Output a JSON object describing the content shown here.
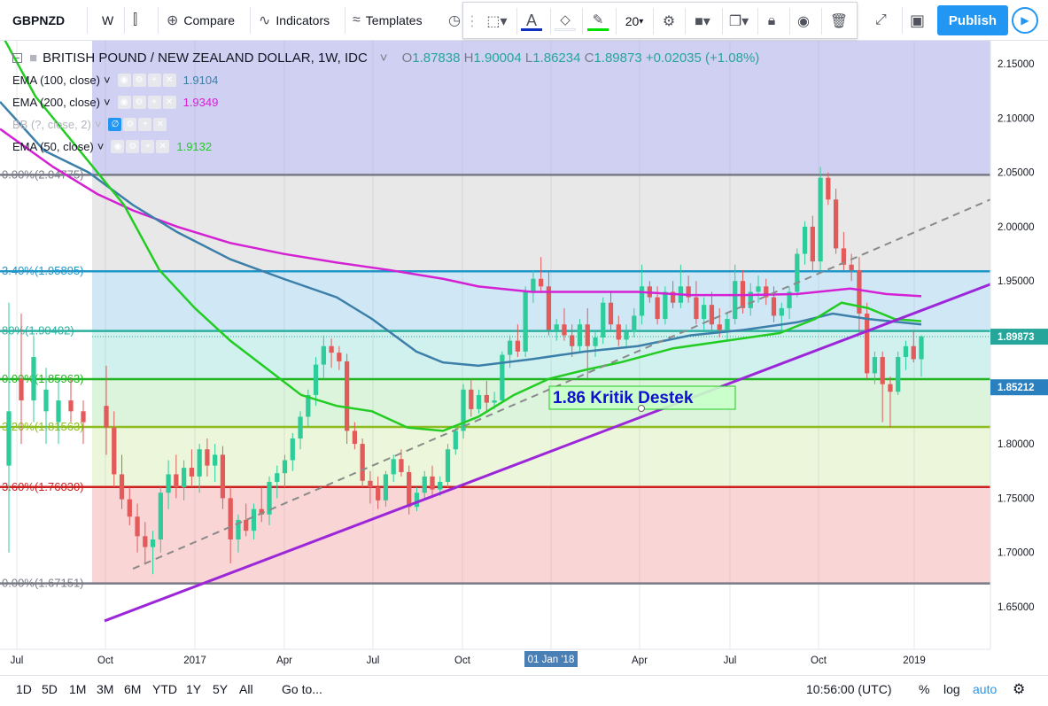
{
  "toolbar": {
    "symbol": "GBPNZD",
    "interval": "W",
    "compare": "Compare",
    "indicators": "Indicators",
    "templates": "Templates",
    "publish": "Publish"
  },
  "drawing_toolbar": {
    "font_size": "20",
    "line_color": "#00e000"
  },
  "legend": {
    "title": "BRITISH POUND / NEW ZEALAND DOLLAR, 1W, IDC",
    "open": "1.87838",
    "high": "1.90004",
    "low": "1.86234",
    "close": "1.89873",
    "change": "+0.02035 (+1.08%)",
    "indicators": [
      {
        "label": "EMA (100, close)",
        "value": "1.9104",
        "color": "#3c7fa8"
      },
      {
        "label": "EMA (200, close)",
        "value": "1.9349",
        "color": "#d321d3"
      },
      {
        "label": "BB (?, close, 2)",
        "value": "",
        "color": "#b2b5be"
      },
      {
        "label": "EMA (50, close)",
        "value": "1.9132",
        "color": "#22cc22"
      }
    ]
  },
  "chart_data": {
    "type": "candlestick",
    "price_axis": [
      "2.15000",
      "2.10000",
      "2.05000",
      "2.00000",
      "1.95000",
      "1.90000",
      "1.85000",
      "1.80000",
      "1.75000",
      "1.70000",
      "1.65000"
    ],
    "time_axis": [
      "Jul",
      "Oct",
      "2017",
      "Apr",
      "Jul",
      "Oct",
      "01 Jan '18",
      "Apr",
      "Jul",
      "Oct",
      "2019"
    ],
    "last_price": "1.89873",
    "crosshair_price": "1.85212",
    "fib_levels": [
      {
        "label": "0.00%(2.04775)",
        "price": 2.04775,
        "color": "#787b86"
      },
      {
        "label": "3.40%(1.95895)",
        "price": 1.95895,
        "color": "#2196c8"
      },
      {
        "label": "80%(1.90402)",
        "price": 1.90402,
        "color": "#2bb0a0"
      },
      {
        "label": "0.00%(1.85963)",
        "price": 1.85963,
        "color": "#22b322"
      },
      {
        "label": "3.20%(1.81563)",
        "price": 1.81563,
        "color": "#8cbc20"
      },
      {
        "label": "3.60%(1.76030)",
        "price": 1.7603,
        "color": "#cc2020"
      },
      {
        "label": "0.00%(1.67151)",
        "price": 1.67151,
        "color": "#787b86"
      }
    ],
    "annotation": "1.86 Kritik Destek",
    "candles": [
      [
        1.835,
        1.872,
        1.79,
        1.815
      ],
      [
        1.815,
        1.83,
        1.76,
        1.772
      ],
      [
        1.772,
        1.79,
        1.74,
        1.749
      ],
      [
        1.749,
        1.76,
        1.725,
        1.733
      ],
      [
        1.733,
        1.745,
        1.7,
        1.715
      ],
      [
        1.715,
        1.728,
        1.69,
        1.705
      ],
      [
        1.705,
        1.72,
        1.68,
        1.712
      ],
      [
        1.712,
        1.76,
        1.7,
        1.755
      ],
      [
        1.755,
        1.785,
        1.74,
        1.772
      ],
      [
        1.772,
        1.79,
        1.75,
        1.76
      ],
      [
        1.76,
        1.785,
        1.748,
        1.778
      ],
      [
        1.778,
        1.795,
        1.76,
        1.77
      ],
      [
        1.77,
        1.8,
        1.755,
        1.795
      ],
      [
        1.795,
        1.805,
        1.77,
        1.78
      ],
      [
        1.78,
        1.8,
        1.765,
        1.79
      ],
      [
        1.79,
        1.798,
        1.74,
        1.75
      ],
      [
        1.75,
        1.76,
        1.69,
        1.712
      ],
      [
        1.712,
        1.735,
        1.7,
        1.73
      ],
      [
        1.73,
        1.745,
        1.715,
        1.72
      ],
      [
        1.72,
        1.745,
        1.712,
        1.74
      ],
      [
        1.74,
        1.76,
        1.728,
        1.735
      ],
      [
        1.735,
        1.77,
        1.725,
        1.765
      ],
      [
        1.765,
        1.78,
        1.75,
        1.773
      ],
      [
        1.773,
        1.79,
        1.76,
        1.785
      ],
      [
        1.785,
        1.81,
        1.775,
        1.805
      ],
      [
        1.805,
        1.83,
        1.795,
        1.825
      ],
      [
        1.825,
        1.85,
        1.815,
        1.845
      ],
      [
        1.845,
        1.88,
        1.835,
        1.873
      ],
      [
        1.873,
        1.9,
        1.86,
        1.89
      ],
      [
        1.89,
        1.897,
        1.87,
        1.884
      ],
      [
        1.884,
        1.89,
        1.868,
        1.876
      ],
      [
        1.876,
        1.883,
        1.8,
        1.812
      ],
      [
        1.812,
        1.82,
        1.795,
        1.8
      ],
      [
        1.8,
        1.805,
        1.76,
        1.766
      ],
      [
        1.766,
        1.775,
        1.745,
        1.76
      ],
      [
        1.76,
        1.77,
        1.74,
        1.748
      ],
      [
        1.748,
        1.775,
        1.742,
        1.772
      ],
      [
        1.772,
        1.79,
        1.765,
        1.786
      ],
      [
        1.786,
        1.795,
        1.77,
        1.774
      ],
      [
        1.774,
        1.78,
        1.735,
        1.742
      ],
      [
        1.742,
        1.76,
        1.738,
        1.755
      ],
      [
        1.755,
        1.775,
        1.748,
        1.77
      ],
      [
        1.77,
        1.78,
        1.75,
        1.758
      ],
      [
        1.758,
        1.77,
        1.752,
        1.765
      ],
      [
        1.765,
        1.8,
        1.76,
        1.795
      ],
      [
        1.795,
        1.815,
        1.79,
        1.812
      ],
      [
        1.812,
        1.855,
        1.805,
        1.85
      ],
      [
        1.85,
        1.86,
        1.825,
        1.832
      ],
      [
        1.832,
        1.85,
        1.828,
        1.845
      ],
      [
        1.845,
        1.858,
        1.83,
        1.838
      ],
      [
        1.838,
        1.848,
        1.832,
        1.84
      ],
      [
        1.84,
        1.885,
        1.838,
        1.882
      ],
      [
        1.882,
        1.9,
        1.87,
        1.895
      ],
      [
        1.895,
        1.91,
        1.88,
        1.885
      ],
      [
        1.885,
        1.945,
        1.88,
        1.94
      ],
      [
        1.94,
        1.96,
        1.93,
        1.952
      ],
      [
        1.952,
        1.972,
        1.94,
        1.945
      ],
      [
        1.945,
        1.958,
        1.9,
        1.905
      ],
      [
        1.905,
        1.915,
        1.895,
        1.91
      ],
      [
        1.91,
        1.925,
        1.895,
        1.9
      ],
      [
        1.9,
        1.91,
        1.88,
        1.89
      ],
      [
        1.89,
        1.915,
        1.885,
        1.91
      ],
      [
        1.91,
        1.925,
        1.86,
        1.89
      ],
      [
        1.89,
        1.905,
        1.88,
        1.898
      ],
      [
        1.898,
        1.935,
        1.892,
        1.93
      ],
      [
        1.93,
        1.94,
        1.905,
        1.91
      ],
      [
        1.91,
        1.918,
        1.89,
        1.896
      ],
      [
        1.896,
        1.91,
        1.888,
        1.903
      ],
      [
        1.903,
        1.925,
        1.898,
        1.918
      ],
      [
        1.918,
        1.965,
        1.91,
        1.945
      ],
      [
        1.945,
        1.95,
        1.93,
        1.935
      ],
      [
        1.935,
        1.945,
        1.91,
        1.915
      ],
      [
        1.915,
        1.945,
        1.91,
        1.94
      ],
      [
        1.94,
        1.95,
        1.925,
        1.93
      ],
      [
        1.93,
        1.965,
        1.925,
        1.945
      ],
      [
        1.945,
        1.955,
        1.93,
        1.935
      ],
      [
        1.935,
        1.95,
        1.91,
        1.915
      ],
      [
        1.915,
        1.935,
        1.905,
        1.928
      ],
      [
        1.928,
        1.94,
        1.905,
        1.91
      ],
      [
        1.91,
        1.925,
        1.898,
        1.905
      ],
      [
        1.905,
        1.92,
        1.895,
        1.915
      ],
      [
        1.915,
        1.965,
        1.91,
        1.95
      ],
      [
        1.95,
        1.96,
        1.92,
        1.925
      ],
      [
        1.925,
        1.948,
        1.918,
        1.94
      ],
      [
        1.94,
        1.955,
        1.93,
        1.945
      ],
      [
        1.945,
        1.952,
        1.928,
        1.935
      ],
      [
        1.935,
        1.945,
        1.912,
        1.918
      ],
      [
        1.918,
        1.93,
        1.905,
        1.925
      ],
      [
        1.925,
        1.945,
        1.915,
        1.94
      ],
      [
        1.94,
        1.98,
        1.935,
        1.975
      ],
      [
        1.975,
        2.005,
        1.965,
        2.0
      ],
      [
        2.0,
        2.01,
        1.96,
        1.968
      ],
      [
        1.968,
        2.055,
        1.96,
        2.045
      ],
      [
        2.045,
        2.05,
        2.02,
        2.025
      ],
      [
        2.025,
        2.035,
        1.975,
        1.98
      ],
      [
        1.98,
        1.995,
        1.96,
        1.965
      ],
      [
        1.965,
        1.975,
        1.95,
        1.96
      ],
      [
        1.96,
        1.972,
        1.9,
        1.92
      ],
      [
        1.92,
        1.93,
        1.86,
        1.865
      ],
      [
        1.865,
        1.885,
        1.855,
        1.88
      ],
      [
        1.88,
        1.885,
        1.82,
        1.855
      ],
      [
        1.855,
        1.862,
        1.815,
        1.848
      ],
      [
        1.848,
        1.885,
        1.845,
        1.88
      ],
      [
        1.88,
        1.895,
        1.868,
        1.89
      ],
      [
        1.89,
        1.905,
        1.875,
        1.878
      ],
      [
        1.878,
        1.9,
        1.862,
        1.899
      ]
    ]
  },
  "bottom": {
    "ranges": [
      "1D",
      "5D",
      "1M",
      "3M",
      "6M",
      "YTD",
      "1Y",
      "5Y",
      "All"
    ],
    "goto": "Go to...",
    "time": "10:56:00 (UTC)",
    "percent": "%",
    "log": "log",
    "auto": "auto"
  }
}
